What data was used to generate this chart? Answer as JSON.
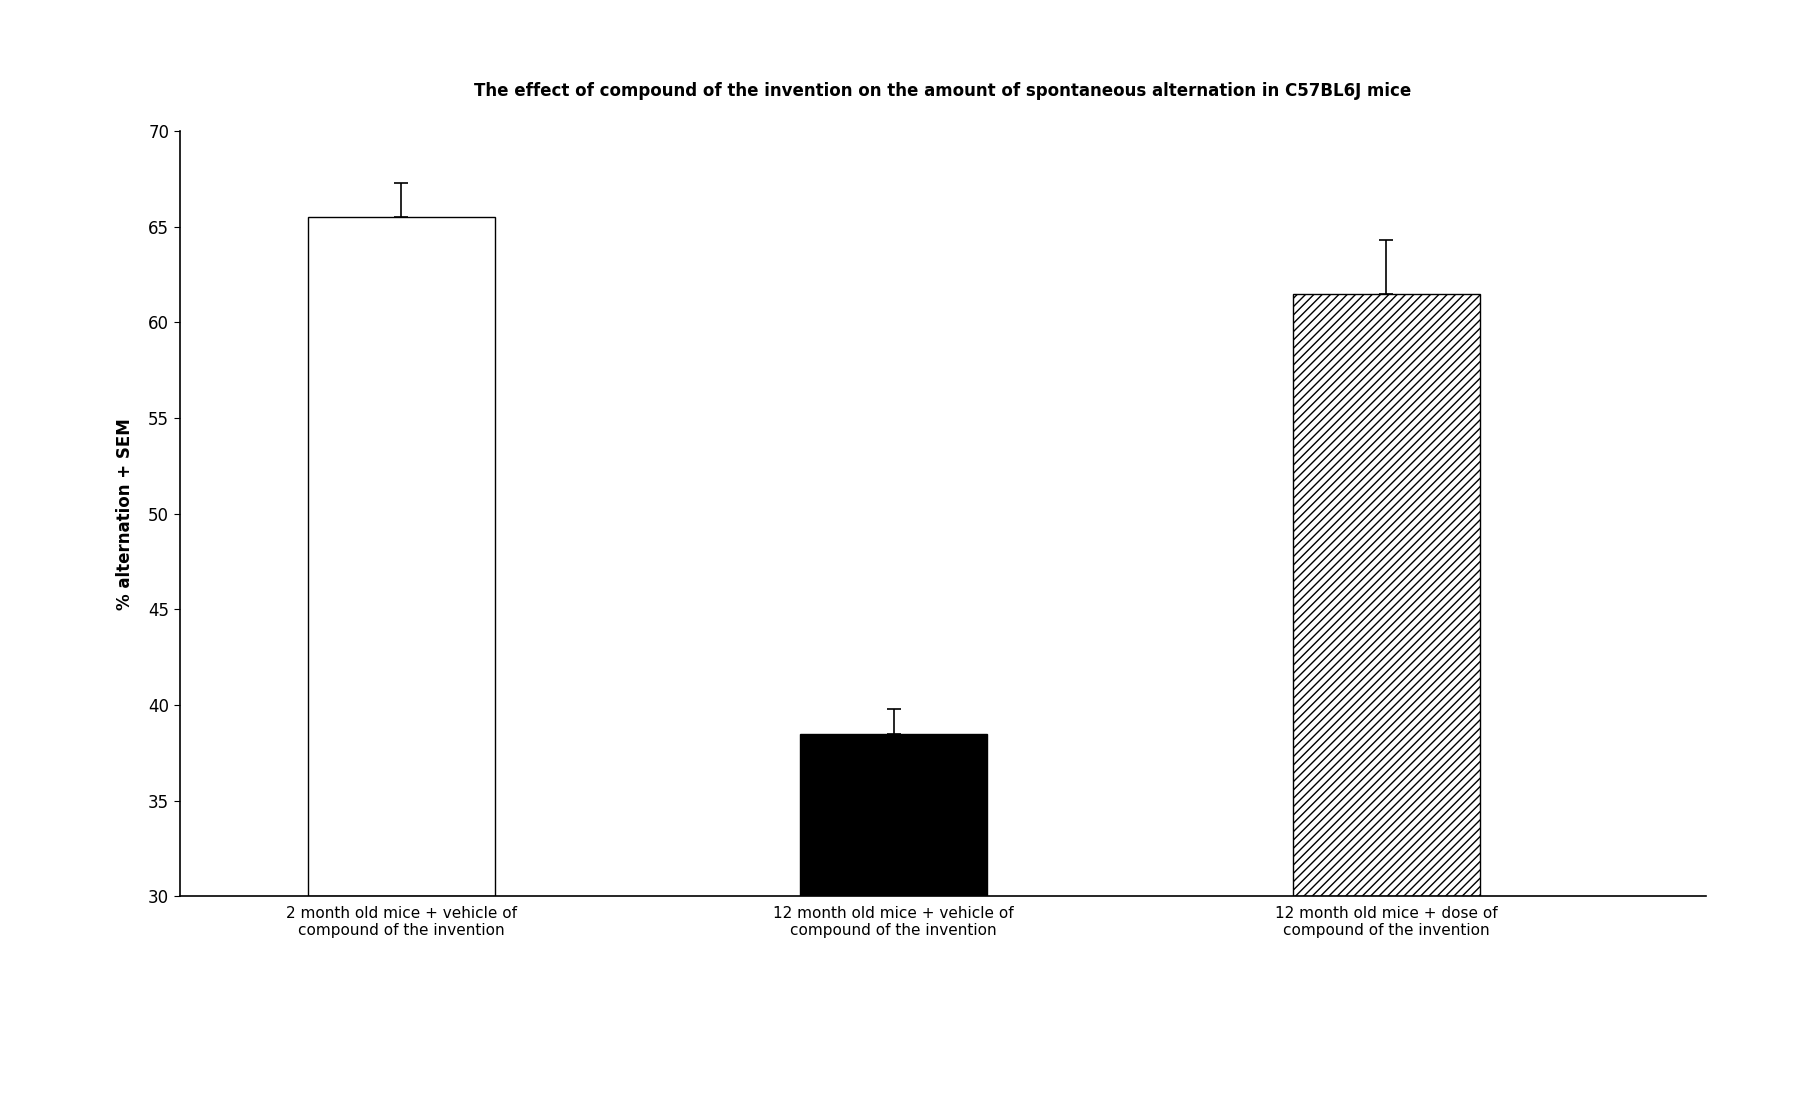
{
  "title": "The effect of compound of the invention on the amount of spontaneous alternation in C57BL6J mice",
  "ylabel": "% alternation + SEM",
  "categories": [
    "2 month old mice + vehicle of\ncompound of the invention",
    "12 month old mice + vehicle of\ncompound of the invention",
    "12 month old mice + dose of\ncompound of the invention"
  ],
  "values": [
    65.5,
    38.5,
    61.5
  ],
  "errors": [
    1.8,
    1.3,
    2.8
  ],
  "ylim": [
    30,
    70
  ],
  "yticks": [
    30,
    35,
    40,
    45,
    50,
    55,
    60,
    65,
    70
  ],
  "bar_colors": [
    "#ffffff",
    "#000000",
    "#ffffff"
  ],
  "bar_hatches": [
    null,
    null,
    "////"
  ],
  "bar_edge_colors": [
    "#000000",
    "#000000",
    "#000000"
  ],
  "bar_width": 0.38,
  "x_positions": [
    1,
    2,
    3
  ],
  "xlim": [
    0.55,
    3.65
  ],
  "background_color": "#ffffff",
  "title_fontsize": 12,
  "axis_fontsize": 12,
  "tick_fontsize": 12,
  "label_fontsize": 11
}
